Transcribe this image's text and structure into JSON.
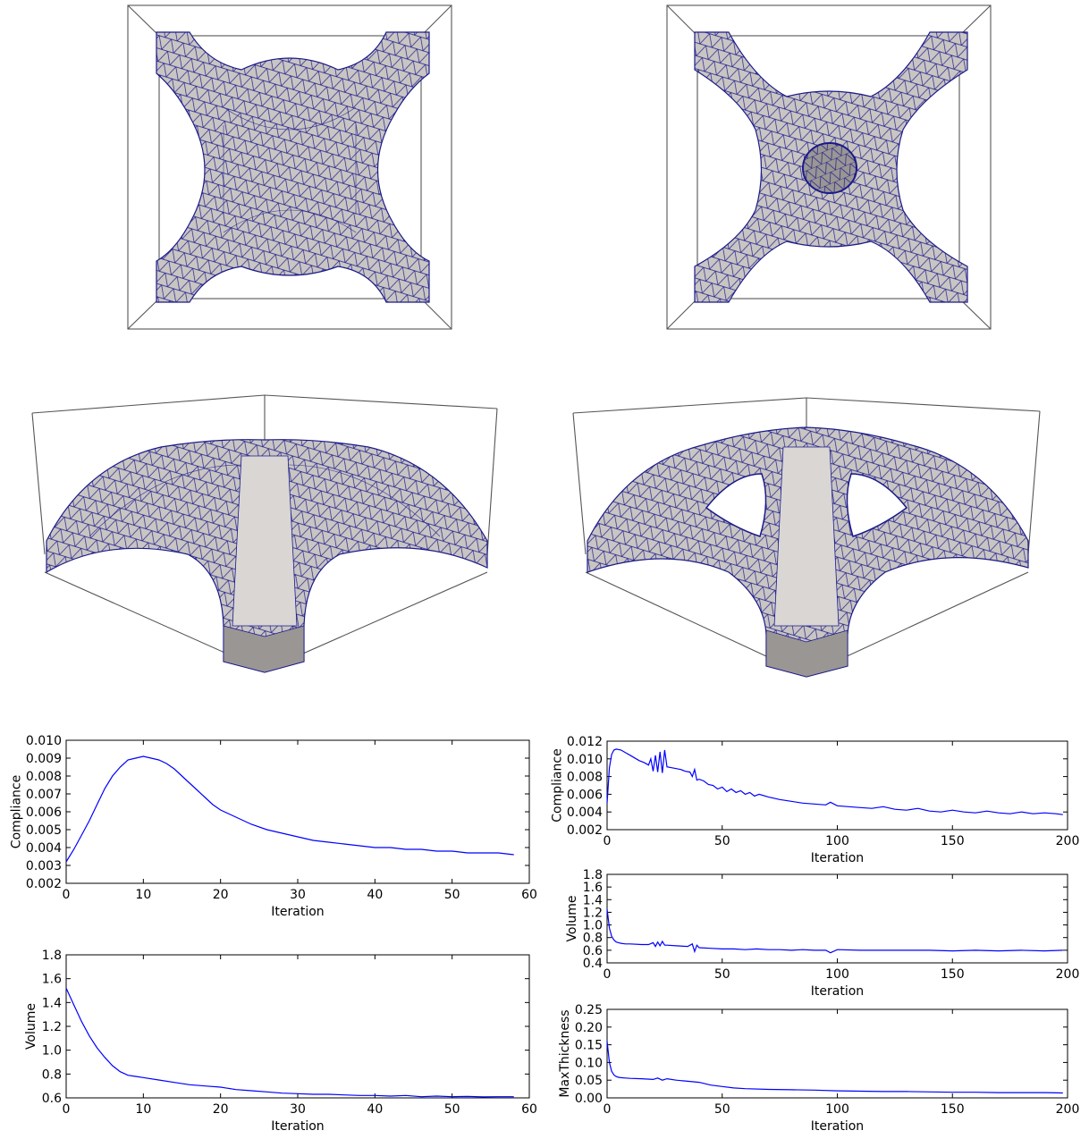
{
  "colors": {
    "series": "#0000ff",
    "mesh_edge": "#1a1a8a",
    "surface": "#c9c5c3",
    "box": "#555555"
  },
  "renders": [
    {
      "name": "top-left-top-view",
      "kind": "top",
      "hole": false
    },
    {
      "name": "top-right-top-view",
      "kind": "top",
      "hole": true
    },
    {
      "name": "middle-left-perspective",
      "kind": "persp",
      "hole": false
    },
    {
      "name": "middle-right-perspective",
      "kind": "persp",
      "hole": true
    }
  ],
  "chart_data": [
    {
      "id": "left-compliance",
      "type": "line",
      "xlabel": "Iteration",
      "ylabel": "Compliance",
      "xlim": [
        0,
        60
      ],
      "ylim": [
        0.002,
        0.01
      ],
      "xticks": [
        0,
        10,
        20,
        30,
        40,
        50,
        60
      ],
      "xtick_labels": [
        "0",
        "10",
        "20",
        "30",
        "40",
        "50",
        "60"
      ],
      "yticks": [
        0.002,
        0.003,
        0.004,
        0.005,
        0.006,
        0.007,
        0.008,
        0.009,
        0.01
      ],
      "ytick_labels": [
        "0.002",
        "0.003",
        "0.004",
        "0.005",
        "0.006",
        "0.007",
        "0.008",
        "0.009",
        "0.010"
      ],
      "series": [
        {
          "x": [
            0,
            1,
            2,
            3,
            4,
            5,
            6,
            7,
            8,
            9,
            10,
            11,
            12,
            13,
            14,
            15,
            16,
            17,
            18,
            19,
            20,
            22,
            24,
            26,
            28,
            30,
            32,
            34,
            36,
            38,
            40,
            42,
            44,
            46,
            48,
            50,
            52,
            54,
            56,
            58
          ],
          "y": [
            0.0032,
            0.0039,
            0.0047,
            0.0055,
            0.0064,
            0.0073,
            0.008,
            0.0085,
            0.0089,
            0.009,
            0.0091,
            0.009,
            0.0089,
            0.0087,
            0.0084,
            0.008,
            0.0076,
            0.0072,
            0.0068,
            0.0064,
            0.0061,
            0.0057,
            0.0053,
            0.005,
            0.0048,
            0.0046,
            0.0044,
            0.0043,
            0.0042,
            0.0041,
            0.004,
            0.004,
            0.0039,
            0.0039,
            0.0038,
            0.0038,
            0.0037,
            0.0037,
            0.0037,
            0.0036
          ]
        }
      ]
    },
    {
      "id": "left-volume",
      "type": "line",
      "xlabel": "Iteration",
      "ylabel": "Volume",
      "xlim": [
        0,
        60
      ],
      "ylim": [
        0.6,
        1.8
      ],
      "xticks": [
        0,
        10,
        20,
        30,
        40,
        50,
        60
      ],
      "xtick_labels": [
        "0",
        "10",
        "20",
        "30",
        "40",
        "50",
        "60"
      ],
      "yticks": [
        0.6,
        0.8,
        1.0,
        1.2,
        1.4,
        1.6,
        1.8
      ],
      "ytick_labels": [
        "0.6",
        "0.8",
        "1.0",
        "1.2",
        "1.4",
        "1.6",
        "1.8"
      ],
      "series": [
        {
          "x": [
            0,
            1,
            2,
            3,
            4,
            5,
            6,
            7,
            8,
            9,
            10,
            12,
            14,
            16,
            18,
            20,
            22,
            24,
            26,
            28,
            30,
            32,
            34,
            36,
            38,
            40,
            42,
            44,
            46,
            48,
            50,
            52,
            54,
            56,
            58
          ],
          "y": [
            1.52,
            1.38,
            1.24,
            1.12,
            1.02,
            0.94,
            0.87,
            0.82,
            0.79,
            0.78,
            0.77,
            0.75,
            0.73,
            0.71,
            0.7,
            0.69,
            0.67,
            0.66,
            0.65,
            0.64,
            0.635,
            0.63,
            0.63,
            0.625,
            0.62,
            0.62,
            0.615,
            0.62,
            0.61,
            0.615,
            0.61,
            0.612,
            0.608,
            0.61,
            0.61
          ]
        }
      ]
    },
    {
      "id": "right-compliance",
      "type": "line",
      "xlabel": "Iteration",
      "ylabel": "Compliance",
      "xlim": [
        0,
        200
      ],
      "ylim": [
        0.002,
        0.012
      ],
      "xticks": [
        0,
        50,
        100,
        150,
        200
      ],
      "xtick_labels": [
        "0",
        "50",
        "100",
        "150",
        "200"
      ],
      "yticks": [
        0.002,
        0.004,
        0.006,
        0.008,
        0.01,
        0.012
      ],
      "ytick_labels": [
        "0.002",
        "0.004",
        "0.006",
        "0.008",
        "0.010",
        "0.012"
      ],
      "series": [
        {
          "x": [
            0,
            1,
            2,
            3,
            4,
            6,
            8,
            10,
            12,
            14,
            16,
            18,
            19,
            20,
            21,
            22,
            23,
            24,
            25,
            26,
            28,
            30,
            32,
            34,
            36,
            37,
            38,
            39,
            40,
            42,
            44,
            46,
            48,
            50,
            52,
            54,
            56,
            58,
            60,
            62,
            64,
            66,
            70,
            75,
            80,
            85,
            90,
            95,
            97,
            100,
            105,
            110,
            115,
            120,
            125,
            130,
            135,
            140,
            145,
            150,
            155,
            160,
            165,
            170,
            175,
            180,
            185,
            190,
            195,
            198
          ],
          "y": [
            0.005,
            0.009,
            0.0105,
            0.011,
            0.0111,
            0.011,
            0.0107,
            0.0104,
            0.0101,
            0.0098,
            0.0096,
            0.0093,
            0.01,
            0.0086,
            0.0104,
            0.0085,
            0.0108,
            0.0084,
            0.011,
            0.0091,
            0.009,
            0.0089,
            0.0088,
            0.0086,
            0.0085,
            0.008,
            0.0088,
            0.0076,
            0.0077,
            0.0075,
            0.0071,
            0.007,
            0.0066,
            0.0068,
            0.0063,
            0.0066,
            0.0062,
            0.0064,
            0.006,
            0.0062,
            0.0058,
            0.006,
            0.0057,
            0.0054,
            0.0052,
            0.005,
            0.0049,
            0.0048,
            0.0051,
            0.0047,
            0.0046,
            0.0045,
            0.0044,
            0.0046,
            0.0043,
            0.0042,
            0.0044,
            0.0041,
            0.004,
            0.0042,
            0.004,
            0.0039,
            0.0041,
            0.0039,
            0.0038,
            0.004,
            0.0038,
            0.0039,
            0.0038,
            0.0037
          ]
        }
      ]
    },
    {
      "id": "right-volume",
      "type": "line",
      "xlabel": "Iteration",
      "ylabel": "Volume",
      "xlim": [
        0,
        200
      ],
      "ylim": [
        0.4,
        1.8
      ],
      "xticks": [
        0,
        50,
        100,
        150,
        200
      ],
      "xtick_labels": [
        "0",
        "50",
        "100",
        "150",
        "200"
      ],
      "yticks": [
        0.4,
        0.6,
        0.8,
        1.0,
        1.2,
        1.4,
        1.6,
        1.8
      ],
      "ytick_labels": [
        "0.4",
        "0.6",
        "0.8",
        "1.0",
        "1.2",
        "1.4",
        "1.6",
        "1.8"
      ],
      "series": [
        {
          "x": [
            0,
            1,
            2,
            3,
            4,
            5,
            6,
            8,
            10,
            15,
            18,
            20,
            21,
            22,
            23,
            24,
            25,
            26,
            30,
            35,
            37,
            38,
            39,
            40,
            45,
            50,
            55,
            60,
            65,
            70,
            75,
            80,
            85,
            90,
            95,
            97,
            100,
            110,
            120,
            130,
            140,
            150,
            160,
            170,
            180,
            190,
            198
          ],
          "y": [
            1.25,
            0.95,
            0.82,
            0.76,
            0.73,
            0.72,
            0.71,
            0.7,
            0.7,
            0.69,
            0.69,
            0.72,
            0.66,
            0.73,
            0.67,
            0.74,
            0.68,
            0.68,
            0.67,
            0.66,
            0.7,
            0.58,
            0.68,
            0.64,
            0.63,
            0.62,
            0.62,
            0.61,
            0.62,
            0.61,
            0.61,
            0.6,
            0.61,
            0.6,
            0.6,
            0.56,
            0.61,
            0.6,
            0.6,
            0.6,
            0.6,
            0.59,
            0.6,
            0.59,
            0.6,
            0.59,
            0.6
          ]
        }
      ]
    },
    {
      "id": "right-maxthickness",
      "type": "line",
      "xlabel": "Iteration",
      "ylabel": "MaxThickness",
      "xlim": [
        0,
        200
      ],
      "ylim": [
        0.0,
        0.25
      ],
      "xticks": [
        0,
        50,
        100,
        150,
        200
      ],
      "xtick_labels": [
        "0",
        "50",
        "100",
        "150",
        "200"
      ],
      "yticks": [
        0.0,
        0.05,
        0.1,
        0.15,
        0.2,
        0.25
      ],
      "ytick_labels": [
        "0.00",
        "0.05",
        "0.10",
        "0.15",
        "0.20",
        "0.25"
      ],
      "series": [
        {
          "x": [
            0,
            1,
            2,
            3,
            4,
            5,
            6,
            8,
            10,
            15,
            20,
            22,
            24,
            26,
            30,
            35,
            40,
            45,
            50,
            55,
            60,
            70,
            80,
            90,
            100,
            110,
            120,
            130,
            140,
            150,
            160,
            170,
            180,
            190,
            198
          ],
          "y": [
            0.16,
            0.1,
            0.075,
            0.065,
            0.06,
            0.058,
            0.057,
            0.056,
            0.055,
            0.054,
            0.052,
            0.056,
            0.05,
            0.054,
            0.05,
            0.047,
            0.044,
            0.036,
            0.032,
            0.028,
            0.026,
            0.024,
            0.023,
            0.022,
            0.02,
            0.019,
            0.018,
            0.018,
            0.017,
            0.016,
            0.016,
            0.015,
            0.015,
            0.015,
            0.014
          ]
        }
      ]
    }
  ]
}
